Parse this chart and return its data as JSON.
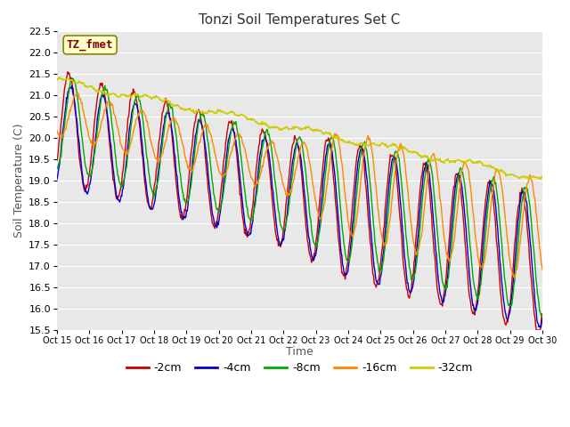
{
  "title": "Tonzi Soil Temperatures Set C",
  "xlabel": "Time",
  "ylabel": "Soil Temperature (C)",
  "ylim": [
    15.5,
    22.5
  ],
  "plot_bg_color": "#e8e8e8",
  "grid_color": "#ffffff",
  "legend_bg": "#ffffff",
  "series": {
    "-2cm": {
      "color": "#cc0000",
      "lw": 1.0
    },
    "-4cm": {
      "color": "#0000cc",
      "lw": 1.0
    },
    "-8cm": {
      "color": "#00aa00",
      "lw": 1.0
    },
    "-16cm": {
      "color": "#ff8800",
      "lw": 1.0
    },
    "-32cm": {
      "color": "#cccc00",
      "lw": 1.2
    }
  },
  "xtick_labels": [
    "Oct 15",
    "Oct 16",
    "Oct 17",
    "Oct 18",
    "Oct 19",
    "Oct 20",
    "Oct 21",
    "Oct 22",
    "Oct 23",
    "Oct 24",
    "Oct 25",
    "Oct 26",
    "Oct 27",
    "Oct 28",
    "Oct 29",
    "Oct 30"
  ],
  "annotation": {
    "text": "TZ_fmet",
    "fontsize": 9,
    "color": "#880000",
    "bg": "#ffffcc",
    "border_color": "#888800"
  },
  "n_points": 720
}
